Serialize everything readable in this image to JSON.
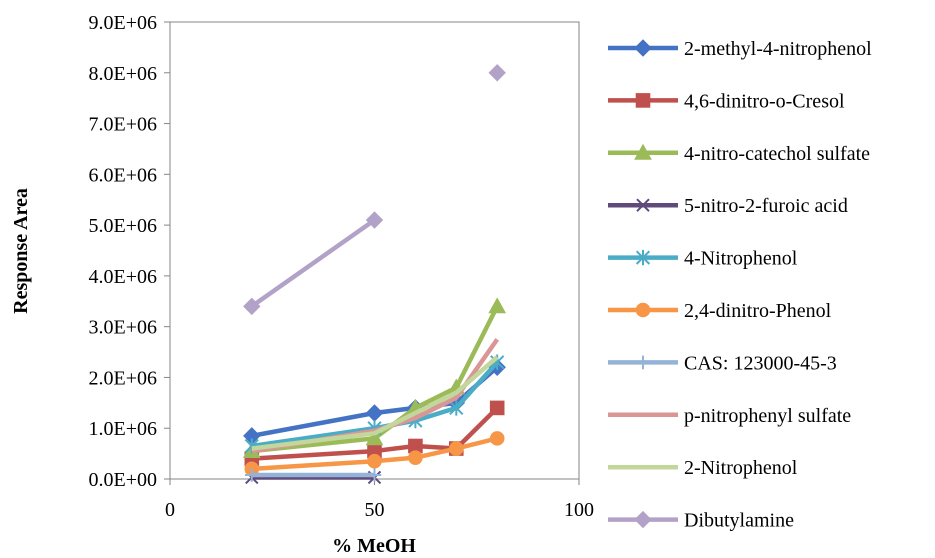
{
  "chart_data": {
    "type": "line",
    "title": "",
    "xlabel": "% MeOH",
    "ylabel": "Response Area",
    "xlim": [
      0,
      100
    ],
    "ylim": [
      0,
      9000000
    ],
    "x_ticks": [
      0,
      50,
      100
    ],
    "x_tick_labels": [
      "0",
      "50",
      "100"
    ],
    "y_ticks": [
      0,
      1000000,
      2000000,
      3000000,
      4000000,
      5000000,
      6000000,
      7000000,
      8000000,
      9000000
    ],
    "y_tick_labels": [
      "0.0E+00",
      "1.0E+06",
      "2.0E+06",
      "3.0E+06",
      "4.0E+06",
      "5.0E+06",
      "6.0E+06",
      "7.0E+06",
      "8.0E+06",
      "9.0E+06"
    ],
    "grid": false,
    "legend_position": "right",
    "series": [
      {
        "name": "2-methyl-4-nitrophenol",
        "color": "#4472C4",
        "marker": "diamond",
        "points": [
          [
            20,
            850000
          ],
          [
            50,
            1300000
          ],
          [
            60,
            1400000
          ],
          [
            70,
            1500000
          ],
          [
            80,
            2200000
          ]
        ]
      },
      {
        "name": "4,6-dinitro-o-Cresol",
        "color": "#C0504D",
        "marker": "square",
        "points": [
          [
            20,
            400000
          ],
          [
            50,
            550000
          ],
          [
            60,
            650000
          ],
          [
            70,
            600000
          ],
          [
            80,
            1400000
          ]
        ]
      },
      {
        "name": "4-nitro-catechol sulfate",
        "color": "#9BBB59",
        "marker": "triangle",
        "points": [
          [
            20,
            550000
          ],
          [
            50,
            800000
          ],
          [
            60,
            1400000
          ],
          [
            70,
            1800000
          ],
          [
            80,
            3400000
          ]
        ]
      },
      {
        "name": "5-nitro-2-furoic acid",
        "color": "#604A7B",
        "marker": "x",
        "points": [
          [
            20,
            30000
          ],
          [
            50,
            30000
          ]
        ]
      },
      {
        "name": "4-Nitrophenol",
        "color": "#4BACC6",
        "marker": "star",
        "points": [
          [
            20,
            650000
          ],
          [
            50,
            1000000
          ],
          [
            60,
            1150000
          ],
          [
            70,
            1400000
          ],
          [
            80,
            2300000
          ]
        ]
      },
      {
        "name": "2,4-dinitro-Phenol",
        "color": "#F79646",
        "marker": "circle",
        "points": [
          [
            20,
            200000
          ],
          [
            50,
            350000
          ],
          [
            60,
            420000
          ],
          [
            70,
            600000
          ],
          [
            80,
            800000
          ]
        ]
      },
      {
        "name": "CAS: 123000-45-3",
        "color": "#95B3D7",
        "marker": "plus",
        "points": [
          [
            20,
            80000
          ],
          [
            50,
            80000
          ]
        ]
      },
      {
        "name": "p-nitrophenyl sulfate",
        "color": "#D99694",
        "marker": "none",
        "points": [
          [
            20,
            550000
          ],
          [
            50,
            950000
          ],
          [
            60,
            1200000
          ],
          [
            70,
            1600000
          ],
          [
            80,
            2750000
          ]
        ]
      },
      {
        "name": "2-Nitrophenol",
        "color": "#C3D69B",
        "marker": "none",
        "points": [
          [
            20,
            600000
          ],
          [
            50,
            900000
          ],
          [
            60,
            1300000
          ],
          [
            70,
            1700000
          ],
          [
            80,
            2400000
          ]
        ]
      },
      {
        "name": "Dibutylamine",
        "color": "#B3A2C7",
        "marker": "diamond",
        "points": [
          [
            20,
            3400000
          ],
          [
            50,
            5100000
          ]
        ],
        "extra_points": [
          [
            80,
            8000000
          ]
        ]
      }
    ]
  }
}
